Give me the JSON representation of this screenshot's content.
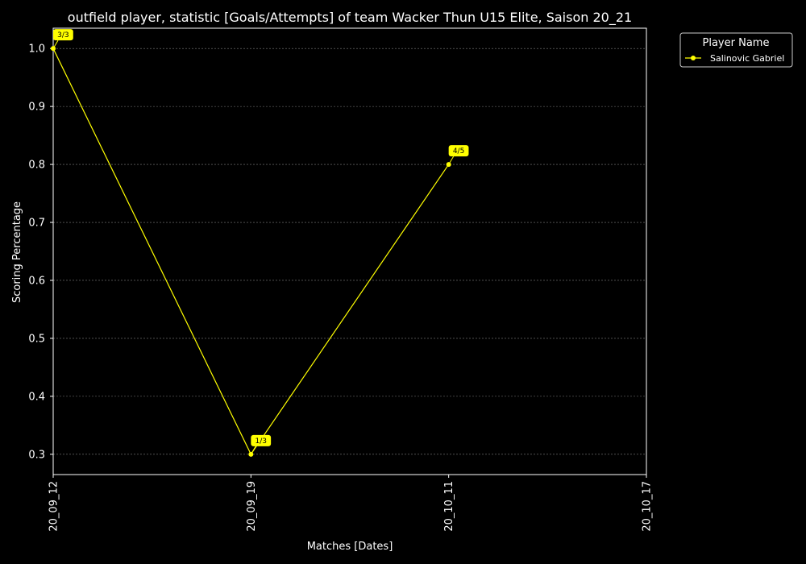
{
  "chart_data": {
    "type": "line",
    "title": "outfield player, statistic [Goals/Attempts] of team Wacker Thun U15 Elite, Saison 20_21",
    "xlabel": "Matches [Dates]",
    "ylabel": "Scoring Percentage",
    "categories": [
      "20_09_12",
      "20_09_19",
      "20_10_11",
      "20_10_17"
    ],
    "ylim": [
      0.265,
      1.035
    ],
    "yticks": [
      "0.3",
      "0.4",
      "0.5",
      "0.6",
      "0.7",
      "0.8",
      "0.9",
      "1.0"
    ],
    "grid": true,
    "legend": {
      "title": "Player Name",
      "placement": "outside-top-right"
    },
    "series": [
      {
        "name": "Salinovic Gabriel",
        "color": "#ffff00",
        "points": [
          {
            "category": "20_09_12",
            "value": 1.0,
            "label": "3/3"
          },
          {
            "category": "20_09_19",
            "value": 0.3,
            "label": "1/3"
          },
          {
            "category": "20_10_11",
            "value": 0.8,
            "label": "4/5"
          }
        ]
      }
    ],
    "colors": {
      "background": "#000000",
      "axes": "#ffffff",
      "grid": "#808080",
      "annotation_bg": "#ffff00"
    }
  }
}
